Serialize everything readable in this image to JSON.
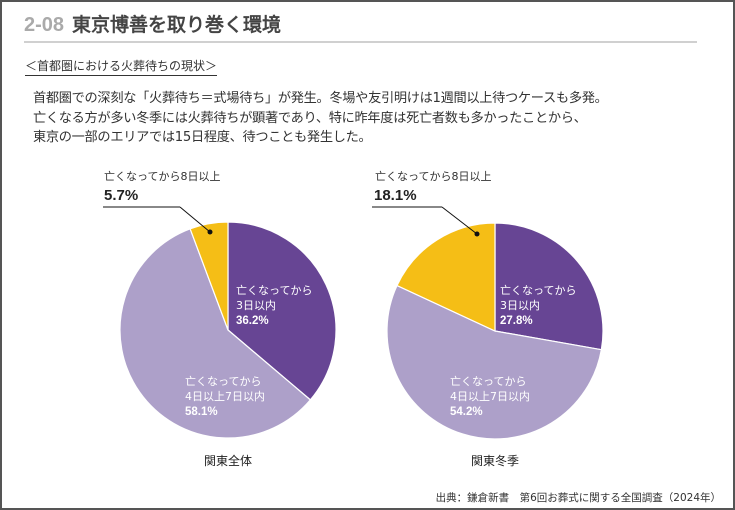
{
  "header": {
    "number": "2-08",
    "title": "東京博善を取り巻く環境"
  },
  "section_title": "＜首都圏における火葬待ちの現状＞",
  "lead_lines": [
    "首都圏での深刻な「火葬待ち＝式場待ち」が発生。冬場や友引明けは1週間以上待つケースも多発。",
    "亡くなる方が多い冬季には火葬待ちが顕著であり、特に昨年度は死亡者数も多かったことから、",
    "東京の一部のエリアでは15日程度、待つことも発生した。"
  ],
  "source": "出典：鎌倉新書　第6回お葬式に関する全国調査（2024年）",
  "colors": {
    "within3": "#674594",
    "days4to7": "#ada0c9",
    "over8": "#f5be16"
  },
  "chart_data": [
    {
      "type": "pie",
      "title": "関東全体",
      "slices": [
        {
          "label_line1": "亡くなってから",
          "label_line2": "3日以内",
          "value": 36.2,
          "value_label": "36.2%",
          "color_key": "within3"
        },
        {
          "label_line1": "亡くなってから",
          "label_line2": "4日以上7日以内",
          "value": 58.1,
          "value_label": "58.1%",
          "color_key": "days4to7"
        },
        {
          "label_line1": "亡くなってから8日以上",
          "label_line2": "",
          "value": 5.7,
          "value_label": "5.7%",
          "color_key": "over8"
        }
      ],
      "start_angle": "12 o'clock",
      "direction": "clockwise"
    },
    {
      "type": "pie",
      "title": "関東冬季",
      "slices": [
        {
          "label_line1": "亡くなってから",
          "label_line2": "3日以内",
          "value": 27.8,
          "value_label": "27.8%",
          "color_key": "within3"
        },
        {
          "label_line1": "亡くなってから",
          "label_line2": "4日以上7日以内",
          "value": 54.2,
          "value_label": "54.2%",
          "color_key": "days4to7"
        },
        {
          "label_line1": "亡くなってから8日以上",
          "label_line2": "",
          "value": 18.1,
          "value_label": "18.1%",
          "color_key": "over8"
        }
      ],
      "start_angle": "12 o'clock",
      "direction": "clockwise"
    }
  ]
}
